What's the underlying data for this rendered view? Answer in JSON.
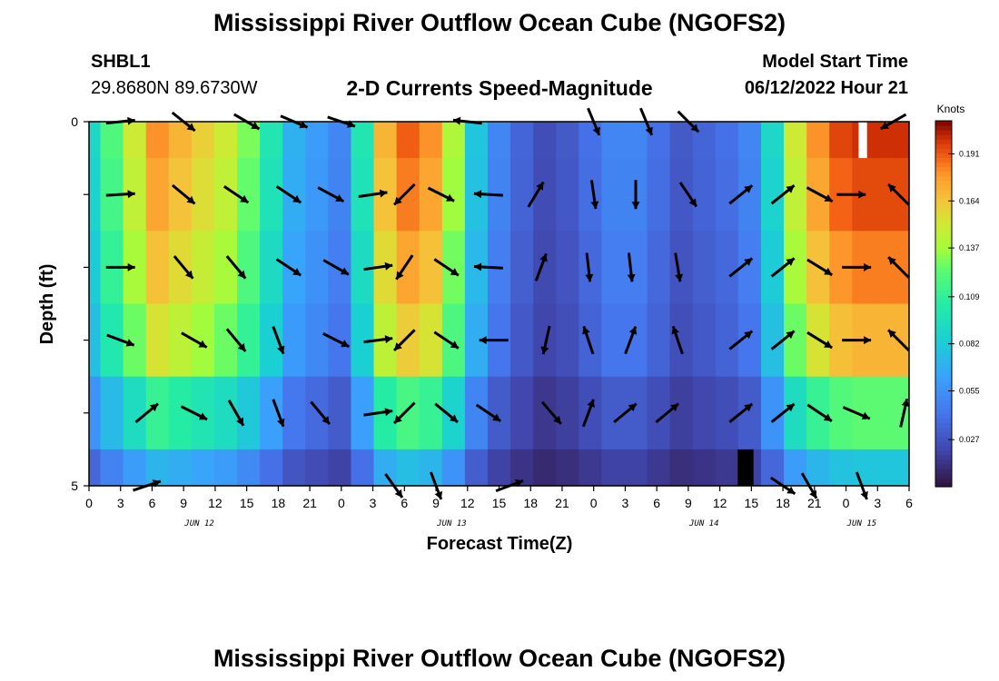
{
  "header": {
    "title": "Mississippi River Outflow Ocean Cube (NGOFS2)",
    "station_id": "SHBL1",
    "coordinates": "29.8680N  89.6730W",
    "model_start_label": "Model Start Time",
    "model_start_value": "06/12/2022 Hour 21"
  },
  "footer": {
    "title": "Mississippi River Outflow Ocean Cube (NGOFS2)"
  },
  "chart_data": {
    "type": "heatmap",
    "title": "2-D Currents Speed-Magnitude",
    "xlabel": "Forecast Time(Z)",
    "ylabel": "Depth (ft)",
    "colorbar_label": "Knots",
    "colorbar_ticks": [
      "0.027",
      "0.055",
      "0.082",
      "0.109",
      "0.137",
      "0.164",
      "0.191"
    ],
    "colorbar_range": [
      0.0,
      0.21
    ],
    "x_range_hours": [
      0,
      78
    ],
    "x_tick_labels": [
      "0",
      "3",
      "6",
      "9",
      "12",
      "15",
      "18",
      "21",
      "0",
      "3",
      "6",
      "9",
      "12",
      "15",
      "18",
      "21",
      "0",
      "3",
      "6",
      "9",
      "12",
      "15",
      "18",
      "21",
      "0",
      "3",
      "6"
    ],
    "date_labels": [
      {
        "text": "JUN 12",
        "hour": 10.5
      },
      {
        "text": "JUN 13",
        "hour": 34.5
      },
      {
        "text": "JUN 14",
        "hour": 58.5
      },
      {
        "text": "JUN 15",
        "hour": 73.5
      }
    ],
    "y_range": [
      0,
      5
    ],
    "y_tick_labels": [
      {
        "value": 0,
        "label": "0"
      },
      {
        "value": 1,
        "label": ""
      },
      {
        "value": 2,
        "label": ""
      },
      {
        "value": 3,
        "label": ""
      },
      {
        "value": 4,
        "label": ""
      },
      {
        "value": 5,
        "label": "5"
      }
    ],
    "layers": 5,
    "surface_speed_knots": [
      0.09,
      0.12,
      0.15,
      0.18,
      0.17,
      0.16,
      0.15,
      0.13,
      0.1,
      0.07,
      0.06,
      0.05,
      0.1,
      0.17,
      0.19,
      0.18,
      0.14,
      0.08,
      0.05,
      0.035,
      0.025,
      0.03,
      0.04,
      0.05,
      0.05,
      0.04,
      0.03,
      0.035,
      0.04,
      0.05,
      0.09,
      0.15,
      0.18,
      0.195,
      0.2,
      0.2,
      0.2
    ],
    "layer_factors": [
      1.0,
      0.97,
      0.92,
      0.85,
      0.62,
      0.4
    ],
    "arrows": [
      {
        "hour": 3,
        "layer": 0,
        "u": 1,
        "v": 0.1
      },
      {
        "hour": 9,
        "layer": 0,
        "u": 0.5,
        "v": -0.4
      },
      {
        "hour": 15,
        "layer": 0,
        "u": 0.6,
        "v": -0.35
      },
      {
        "hour": 19.5,
        "layer": 0,
        "u": 0.7,
        "v": -0.3
      },
      {
        "hour": 24,
        "layer": 0,
        "u": 0.6,
        "v": -0.2
      },
      {
        "hour": 36,
        "layer": 0,
        "u": -0.9,
        "v": 0.1
      },
      {
        "hour": 48,
        "layer": 0,
        "u": 0.25,
        "v": -0.6
      },
      {
        "hour": 53,
        "layer": 0,
        "u": 0.25,
        "v": -0.6
      },
      {
        "hour": 57,
        "layer": 0,
        "u": 0.5,
        "v": -0.5
      },
      {
        "hour": 76.5,
        "layer": 0,
        "u": -0.7,
        "v": -0.4
      },
      {
        "hour": 3,
        "layer": 1,
        "u": 0.9,
        "v": 0.05
      },
      {
        "hour": 9,
        "layer": 1,
        "u": 0.6,
        "v": -0.5
      },
      {
        "hour": 14,
        "layer": 1,
        "u": 0.6,
        "v": -0.4
      },
      {
        "hour": 19,
        "layer": 1,
        "u": 0.6,
        "v": -0.4
      },
      {
        "hour": 23,
        "layer": 1,
        "u": 0.65,
        "v": -0.35
      },
      {
        "hour": 27,
        "layer": 1,
        "u": 0.7,
        "v": 0.1
      },
      {
        "hour": 30,
        "layer": 1,
        "u": -0.5,
        "v": -0.5
      },
      {
        "hour": 33.5,
        "layer": 1,
        "u": 0.7,
        "v": -0.35
      },
      {
        "hour": 38,
        "layer": 1,
        "u": -0.9,
        "v": 0.05
      },
      {
        "hour": 42.5,
        "layer": 1,
        "u": 0.3,
        "v": 0.5
      },
      {
        "hour": 48,
        "layer": 1,
        "u": 0.1,
        "v": -0.7
      },
      {
        "hour": 52,
        "layer": 1,
        "u": 0.0,
        "v": -0.7
      },
      {
        "hour": 57,
        "layer": 1,
        "u": 0.4,
        "v": -0.6
      },
      {
        "hour": 62,
        "layer": 1,
        "u": 0.5,
        "v": 0.4
      },
      {
        "hour": 66,
        "layer": 1,
        "u": 0.5,
        "v": 0.4
      },
      {
        "hour": 69.5,
        "layer": 1,
        "u": 0.65,
        "v": -0.35
      },
      {
        "hour": 72.5,
        "layer": 1,
        "u": 0.9,
        "v": 0.0
      },
      {
        "hour": 77,
        "layer": 1,
        "u": -0.5,
        "v": 0.5
      },
      {
        "hour": 3,
        "layer": 2,
        "u": 0.9,
        "v": 0.0
      },
      {
        "hour": 9,
        "layer": 2,
        "u": 0.5,
        "v": -0.6
      },
      {
        "hour": 14,
        "layer": 2,
        "u": 0.5,
        "v": -0.6
      },
      {
        "hour": 19,
        "layer": 2,
        "u": 0.6,
        "v": -0.4
      },
      {
        "hour": 23.5,
        "layer": 2,
        "u": 0.7,
        "v": -0.4
      },
      {
        "hour": 27.5,
        "layer": 2,
        "u": 0.7,
        "v": 0.1
      },
      {
        "hour": 30,
        "layer": 2,
        "u": -0.4,
        "v": -0.6
      },
      {
        "hour": 34,
        "layer": 2,
        "u": 0.6,
        "v": -0.4
      },
      {
        "hour": 38,
        "layer": 2,
        "u": -0.9,
        "v": 0.05
      },
      {
        "hour": 43,
        "layer": 2,
        "u": 0.3,
        "v": 0.8
      },
      {
        "hour": 47.5,
        "layer": 2,
        "u": 0.1,
        "v": -0.9
      },
      {
        "hour": 51.5,
        "layer": 2,
        "u": 0.1,
        "v": -0.9
      },
      {
        "hour": 56,
        "layer": 2,
        "u": 0.15,
        "v": -0.9
      },
      {
        "hour": 62,
        "layer": 2,
        "u": 0.5,
        "v": 0.4
      },
      {
        "hour": 66,
        "layer": 2,
        "u": 0.5,
        "v": 0.4
      },
      {
        "hour": 69.5,
        "layer": 2,
        "u": 0.65,
        "v": -0.4
      },
      {
        "hour": 73,
        "layer": 2,
        "u": 0.9,
        "v": 0.0
      },
      {
        "hour": 77,
        "layer": 2,
        "u": -0.5,
        "v": 0.5
      },
      {
        "hour": 3,
        "layer": 3,
        "u": 0.8,
        "v": -0.3
      },
      {
        "hour": 10,
        "layer": 3,
        "u": 0.7,
        "v": -0.4
      },
      {
        "hour": 14,
        "layer": 3,
        "u": 0.5,
        "v": -0.6
      },
      {
        "hour": 18,
        "layer": 3,
        "u": 0.3,
        "v": -0.8
      },
      {
        "hour": 23.5,
        "layer": 3,
        "u": 0.7,
        "v": -0.35
      },
      {
        "hour": 27.5,
        "layer": 3,
        "u": 0.8,
        "v": 0.1
      },
      {
        "hour": 30,
        "layer": 3,
        "u": -0.5,
        "v": -0.5
      },
      {
        "hour": 34,
        "layer": 3,
        "u": 0.6,
        "v": -0.4
      },
      {
        "hour": 38.5,
        "layer": 3,
        "u": -0.9,
        "v": 0.0
      },
      {
        "hour": 43.5,
        "layer": 3,
        "u": -0.2,
        "v": -0.9
      },
      {
        "hour": 47.5,
        "layer": 3,
        "u": -0.3,
        "v": 0.9
      },
      {
        "hour": 51.5,
        "layer": 3,
        "u": 0.3,
        "v": 0.8
      },
      {
        "hour": 56,
        "layer": 3,
        "u": -0.3,
        "v": 0.9
      },
      {
        "hour": 62,
        "layer": 3,
        "u": 0.5,
        "v": 0.4
      },
      {
        "hour": 66,
        "layer": 3,
        "u": 0.5,
        "v": 0.4
      },
      {
        "hour": 69.5,
        "layer": 3,
        "u": 0.65,
        "v": -0.4
      },
      {
        "hour": 73,
        "layer": 3,
        "u": 0.9,
        "v": 0.0
      },
      {
        "hour": 77,
        "layer": 3,
        "u": -0.5,
        "v": 0.5
      },
      {
        "hour": 5.5,
        "layer": 4,
        "u": 0.6,
        "v": 0.5
      },
      {
        "hour": 10,
        "layer": 4,
        "u": 0.7,
        "v": -0.35
      },
      {
        "hour": 14,
        "layer": 4,
        "u": 0.4,
        "v": -0.7
      },
      {
        "hour": 18,
        "layer": 4,
        "u": 0.3,
        "v": -0.8
      },
      {
        "hour": 22,
        "layer": 4,
        "u": 0.5,
        "v": -0.6
      },
      {
        "hour": 27.5,
        "layer": 4,
        "u": 0.7,
        "v": 0.1
      },
      {
        "hour": 30,
        "layer": 4,
        "u": -0.5,
        "v": -0.5
      },
      {
        "hour": 34,
        "layer": 4,
        "u": 0.55,
        "v": -0.45
      },
      {
        "hour": 38,
        "layer": 4,
        "u": 0.6,
        "v": -0.4
      },
      {
        "hour": 44,
        "layer": 4,
        "u": 0.6,
        "v": -0.7
      },
      {
        "hour": 47.5,
        "layer": 4,
        "u": 0.3,
        "v": 0.8
      },
      {
        "hour": 51,
        "layer": 4,
        "u": 0.6,
        "v": 0.5
      },
      {
        "hour": 55,
        "layer": 4,
        "u": 0.6,
        "v": 0.5
      },
      {
        "hour": 62,
        "layer": 4,
        "u": 0.5,
        "v": 0.4
      },
      {
        "hour": 66,
        "layer": 4,
        "u": 0.5,
        "v": 0.4
      },
      {
        "hour": 69.5,
        "layer": 4,
        "u": 0.6,
        "v": -0.4
      },
      {
        "hour": 73,
        "layer": 4,
        "u": 0.7,
        "v": -0.3
      },
      {
        "hour": 77.5,
        "layer": 4,
        "u": 0.2,
        "v": 0.9
      },
      {
        "hour": 5.5,
        "layer": 5,
        "u": 0.9,
        "v": 0.3
      },
      {
        "hour": 29,
        "layer": 5,
        "u": 0.5,
        "v": -0.7
      },
      {
        "hour": 33,
        "layer": 5,
        "u": 0.3,
        "v": -0.8
      },
      {
        "hour": 40,
        "layer": 5,
        "u": 0.8,
        "v": 0.3
      },
      {
        "hour": 66,
        "layer": 5,
        "u": 0.6,
        "v": -0.4
      },
      {
        "hour": 68.5,
        "layer": 5,
        "u": 0.4,
        "v": -0.7
      },
      {
        "hour": 73.5,
        "layer": 5,
        "u": 0.3,
        "v": -0.8
      }
    ]
  }
}
